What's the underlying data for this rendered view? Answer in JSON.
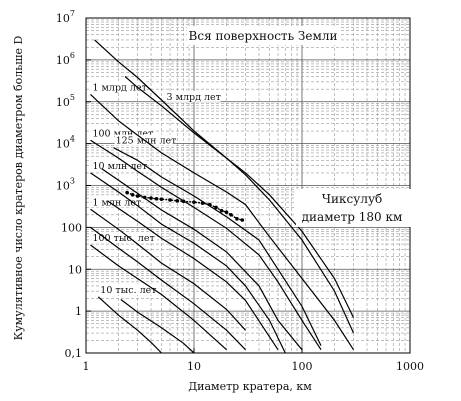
{
  "chart_data": {
    "type": "line",
    "title": "",
    "xlabel": "Диаметр кратера, км",
    "ylabel": "Кумулятивное число кратеров диаметром больше D",
    "xscale": "log",
    "yscale": "log",
    "xlim": [
      1,
      1000
    ],
    "ylim": [
      0.1,
      10000000
    ],
    "grid": true,
    "x_ticks": [
      {
        "value": 1,
        "label": "1"
      },
      {
        "value": 10,
        "label": "10"
      },
      {
        "value": 100,
        "label": "100"
      },
      {
        "value": 1000,
        "label": "1000"
      }
    ],
    "y_ticks": [
      {
        "value": 0.1,
        "base": "0,1",
        "exp": ""
      },
      {
        "value": 1,
        "base": "1",
        "exp": ""
      },
      {
        "value": 10,
        "base": "10",
        "exp": ""
      },
      {
        "value": 100,
        "base": "100",
        "exp": ""
      },
      {
        "value": 1000,
        "base": "10",
        "exp": "3"
      },
      {
        "value": 10000,
        "base": "10",
        "exp": "4"
      },
      {
        "value": 100000,
        "base": "10",
        "exp": "5"
      },
      {
        "value": 1000000,
        "base": "10",
        "exp": "6"
      },
      {
        "value": 10000000,
        "base": "10",
        "exp": "7"
      }
    ],
    "annotations": {
      "region": "Вся поверхность Земли",
      "chicxulub_line1": "Чиксулуб",
      "chicxulub_line2": "диаметр 180 км"
    },
    "series": [
      {
        "name": "10 тыс. лет",
        "x": [
          1.3,
          2,
          3,
          4,
          5
        ],
        "y": [
          2.2,
          0.8,
          0.35,
          0.18,
          0.1
        ]
      },
      {
        "name": "",
        "x": [
          2.1,
          3,
          5,
          8,
          10
        ],
        "y": [
          1.9,
          0.95,
          0.4,
          0.17,
          0.1
        ]
      },
      {
        "name": "100 тыс. лет",
        "x": [
          1.1,
          2,
          3,
          5,
          10,
          20
        ],
        "y": [
          38,
          12,
          6,
          2.5,
          0.6,
          0.12
        ]
      },
      {
        "name": "",
        "x": [
          1.1,
          2,
          3,
          5,
          10,
          20,
          30
        ],
        "y": [
          100,
          32,
          15,
          5.5,
          1.5,
          0.35,
          0.12
        ]
      },
      {
        "name": "1 млн лет",
        "x": [
          1.1,
          2,
          3,
          5,
          10,
          20,
          30
        ],
        "y": [
          270,
          90,
          40,
          14,
          4.5,
          1.1,
          0.35
        ]
      },
      {
        "name": "",
        "x": [
          1.6,
          3,
          5,
          10,
          20,
          30,
          60
        ],
        "y": [
          420,
          140,
          55,
          18,
          5,
          1.8,
          0.12
        ]
      },
      {
        "name": "10 млн лет",
        "x": [
          1.1,
          2,
          3,
          5,
          10,
          20,
          30,
          50,
          70
        ],
        "y": [
          2000,
          700,
          330,
          120,
          42,
          12,
          4,
          0.6,
          0.1
        ]
      },
      {
        "name": "",
        "x": [
          1.4,
          3,
          5,
          10,
          20,
          40,
          60,
          100
        ],
        "y": [
          2500,
          650,
          260,
          90,
          26,
          4,
          0.6,
          0.12
        ]
      },
      {
        "name": "100 млн лет",
        "x": [
          1.1,
          2,
          3,
          5,
          10,
          20,
          40,
          60,
          100,
          150
        ],
        "y": [
          12000,
          4500,
          2200,
          900,
          300,
          95,
          22,
          5,
          0.6,
          0.12
        ]
      },
      {
        "name": "125 млн лет",
        "x": [
          1.8,
          3,
          5,
          10,
          20,
          40,
          60,
          100,
          150
        ],
        "y": [
          8000,
          4000,
          1600,
          560,
          180,
          50,
          10,
          1.3,
          0.15
        ]
      },
      {
        "name": "1 млрд лет",
        "x": [
          1.1,
          2,
          3,
          5,
          10,
          20,
          30,
          50,
          100,
          200,
          300
        ],
        "y": [
          150000,
          35000,
          16000,
          6000,
          2000,
          700,
          350,
          60,
          6,
          0.6,
          0.12
        ]
      },
      {
        "name": "3 млрд лет",
        "x": [
          1.2,
          2,
          3,
          5,
          10,
          20,
          30,
          50,
          100,
          200,
          300
        ],
        "y": [
          3000000,
          900000,
          380000,
          110000,
          20000,
          4500,
          1800,
          450,
          50,
          3,
          0.3
        ]
      },
      {
        "name": "",
        "x": [
          2.3,
          3,
          5,
          10,
          20,
          30,
          50,
          100,
          200,
          300
        ],
        "y": [
          400000,
          220000,
          80000,
          18000,
          4500,
          2000,
          600,
          80,
          6,
          0.7
        ]
      }
    ],
    "observed": {
      "name": "",
      "x": [
        2.4,
        2.7,
        3,
        3.5,
        4,
        4.5,
        5,
        6,
        7,
        8,
        10,
        12,
        14,
        16,
        18,
        20,
        22,
        25,
        28
      ],
      "y": [
        680,
        600,
        560,
        520,
        500,
        480,
        470,
        450,
        430,
        420,
        400,
        380,
        350,
        300,
        250,
        230,
        200,
        160,
        150
      ]
    }
  }
}
